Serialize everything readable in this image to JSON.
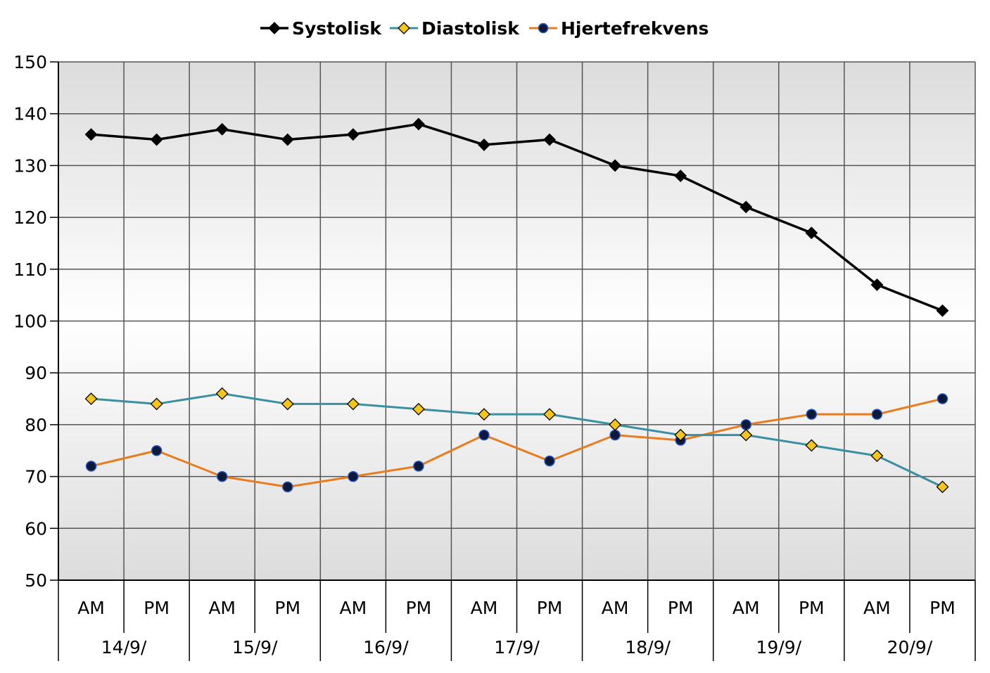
{
  "chart_data": {
    "type": "line",
    "title": "",
    "xlabel": "",
    "ylabel": "",
    "ylim": [
      50,
      150
    ],
    "yticks": [
      50,
      60,
      70,
      80,
      90,
      100,
      110,
      120,
      130,
      140,
      150
    ],
    "grid": true,
    "legend_position": "top",
    "categories": [
      "AM",
      "PM",
      "AM",
      "PM",
      "AM",
      "PM",
      "AM",
      "PM",
      "AM",
      "PM",
      "AM",
      "PM",
      "AM",
      "PM"
    ],
    "groups": [
      "14/9/",
      "15/9/",
      "16/9/",
      "17/9/",
      "18/9/",
      "19/9/",
      "20/9/"
    ],
    "series": [
      {
        "name": "Systolisk",
        "values": [
          136,
          135,
          137,
          135,
          136,
          138,
          134,
          135,
          130,
          128,
          122,
          117,
          107,
          102
        ],
        "line_color": "#000000",
        "marker": "diamond",
        "marker_fill": "#000000"
      },
      {
        "name": "Diastolisk",
        "values": [
          85,
          84,
          86,
          84,
          84,
          83,
          82,
          82,
          80,
          78,
          78,
          76,
          74,
          68
        ],
        "line_color": "#3a8fa0",
        "marker": "diamond",
        "marker_fill": "#f5c518"
      },
      {
        "name": "Hjertefrekvens",
        "values": [
          72,
          75,
          70,
          68,
          70,
          72,
          78,
          73,
          78,
          77,
          80,
          82,
          82,
          85
        ],
        "line_color": "#e87c1e",
        "marker": "circle",
        "marker_fill": "#0b1a3a"
      }
    ]
  }
}
